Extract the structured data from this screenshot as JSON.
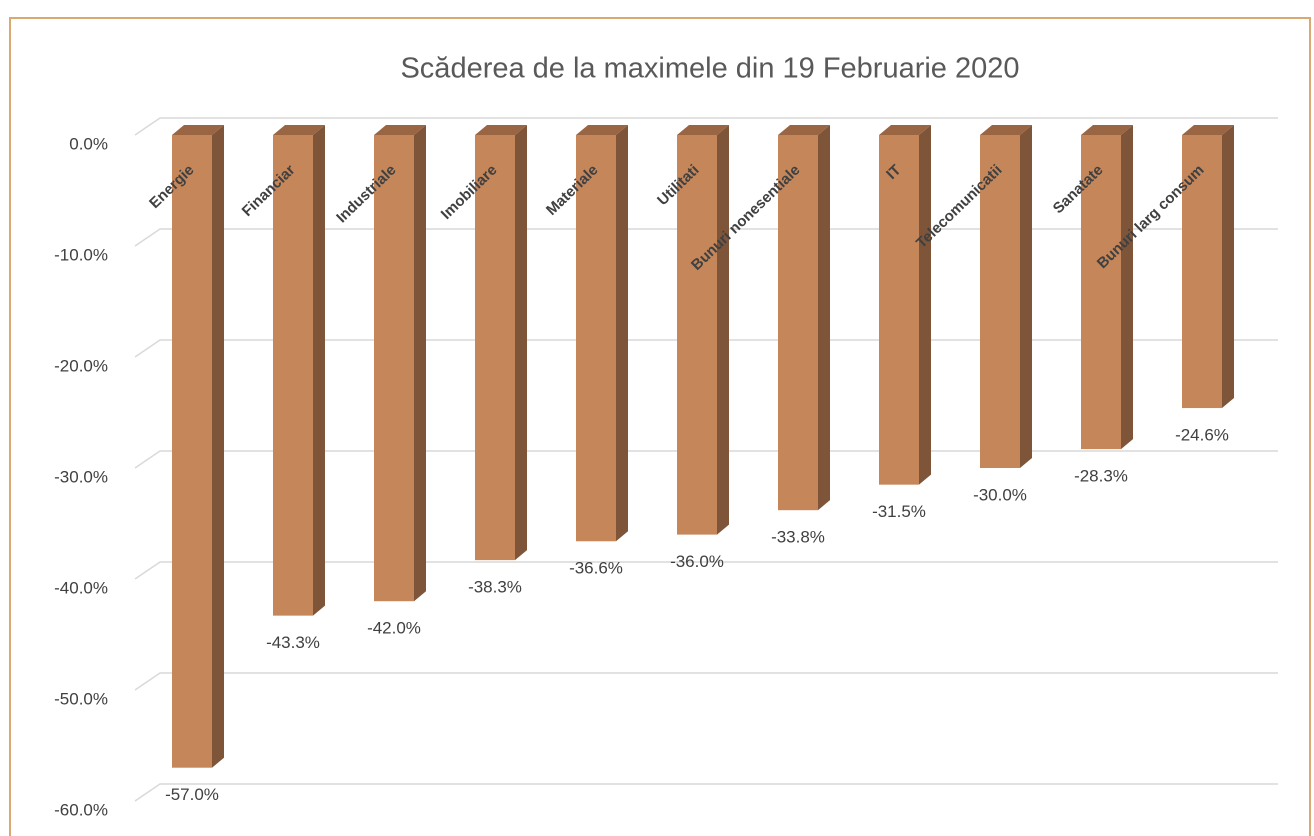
{
  "chart_data": {
    "type": "bar",
    "title": "Scăderea de la maximele din 19 Februarie 2020",
    "categories": [
      "Energie",
      "Financiar",
      "Industriale",
      "Imobiliare",
      "Materiale",
      "Utilitati",
      "Bunuri nonesentiale",
      "IT",
      "Telecomunicatii",
      "Sanatate",
      "Bunuri larg consum"
    ],
    "values": [
      -57.0,
      -43.3,
      -42.0,
      -38.3,
      -36.6,
      -36.0,
      -33.8,
      -31.5,
      -30.0,
      -28.3,
      -24.6
    ],
    "value_labels": [
      "-57.0%",
      "-43.3%",
      "-42.0%",
      "-38.3%",
      "-36.6%",
      "-36.0%",
      "-33.8%",
      "-31.5%",
      "-30.0%",
      "-28.3%",
      "-24.6%"
    ],
    "color": "#c5865a",
    "ylim": [
      -60,
      0
    ],
    "yticks": [
      {
        "value": 0,
        "label": "0.0%"
      },
      {
        "value": -10,
        "label": "-10.0%"
      },
      {
        "value": -20,
        "label": "-20.0%"
      },
      {
        "value": -30,
        "label": "-30.0%"
      },
      {
        "value": -40,
        "label": "-40.0%"
      },
      {
        "value": -50,
        "label": "-50.0%"
      },
      {
        "value": -60,
        "label": "-60.0%"
      }
    ],
    "grid": true
  }
}
